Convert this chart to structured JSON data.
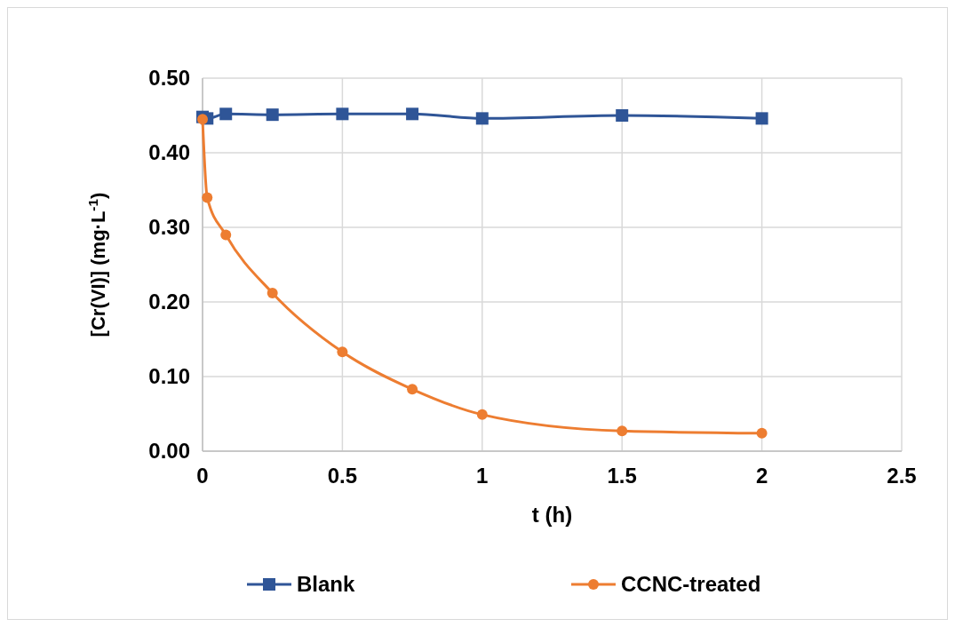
{
  "chart_data": {
    "type": "line",
    "xlabel": "t (h)",
    "ylabel": "[Cr(VI)] (mg·L$^{-1}$)",
    "x": [
      0,
      0.0167,
      0.0833,
      0.25,
      0.5,
      0.75,
      1,
      1.5,
      2
    ],
    "series": [
      {
        "name": "Blank",
        "color": "#2f5597",
        "marker": "square",
        "values": [
          0.448,
          0.446,
          0.452,
          0.451,
          0.452,
          0.452,
          0.446,
          0.45,
          0.446
        ]
      },
      {
        "name": "CCNC-treated",
        "color": "#ed7d31",
        "marker": "circle",
        "values": [
          0.445,
          0.34,
          0.29,
          0.212,
          0.133,
          0.083,
          0.049,
          0.027,
          0.024
        ]
      }
    ],
    "xlim": [
      0,
      2.5
    ],
    "xticks": [
      0,
      0.5,
      1,
      1.5,
      2,
      2.5
    ],
    "ylim": [
      0,
      0.5
    ],
    "yticks": [
      {
        "value": 0,
        "label": "0.00"
      },
      {
        "value": 0.1,
        "label": "0.10"
      },
      {
        "value": 0.2,
        "label": "0.20"
      },
      {
        "value": 0.3,
        "label": "0.30"
      },
      {
        "value": 0.4,
        "label": "0.40"
      },
      {
        "value": 0.5,
        "label": "0.50"
      }
    ],
    "grid": true,
    "legend": "bottom"
  }
}
